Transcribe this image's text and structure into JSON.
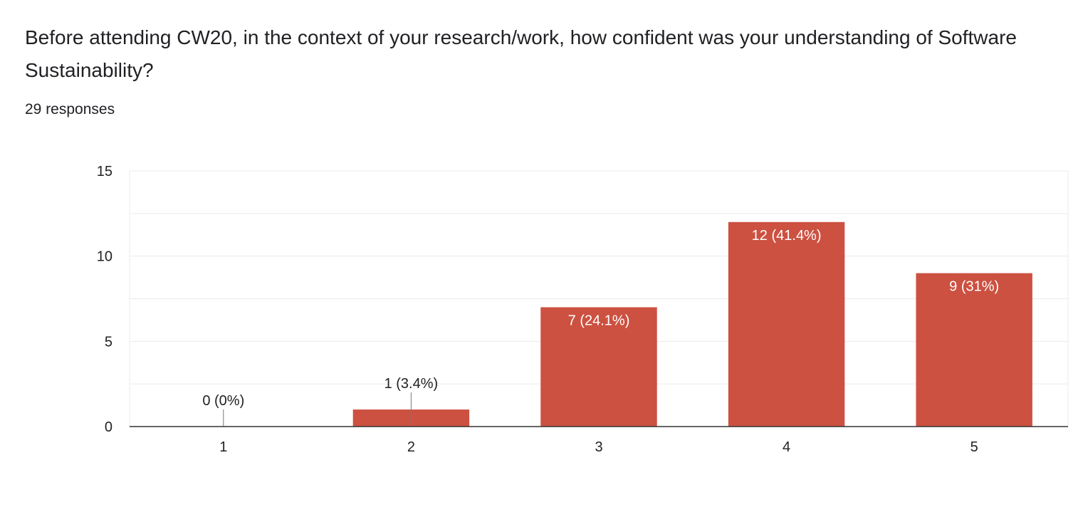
{
  "question": "Before attending CW20, in the context of your research/work, how confident was your understanding of Software Sustainability?",
  "responses_label": "29 responses",
  "colors": {
    "bar": "#cc5141",
    "grid": "#ebebeb",
    "axis": "#333333",
    "text": "#222222"
  },
  "chart_data": {
    "type": "bar",
    "categories": [
      "1",
      "2",
      "3",
      "4",
      "5"
    ],
    "values": [
      0,
      1,
      7,
      12,
      9
    ],
    "data_labels": [
      "0 (0%)",
      "1 (3.4%)",
      "7 (24.1%)",
      "12 (41.4%)",
      "9 (31%)"
    ],
    "ylim": [
      0,
      15
    ],
    "yticks": [
      0,
      5,
      10,
      15
    ],
    "minor_gridlines": [
      2.5,
      7.5,
      12.5
    ],
    "grid": true
  }
}
